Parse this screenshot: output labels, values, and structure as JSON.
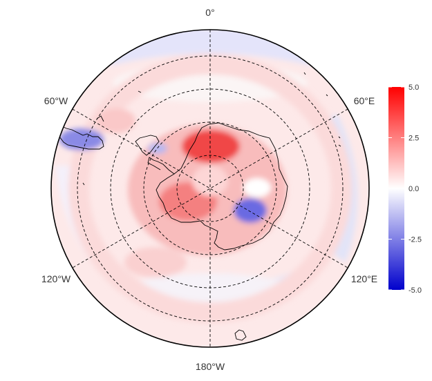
{
  "map": {
    "projection": "south-polar-stereographic",
    "grid_lines": "dashed",
    "longitude_labels": {
      "top": "0°",
      "upper_left": "60°W",
      "upper_right": "60°E",
      "lower_left": "120°W",
      "lower_right": "120°E",
      "bottom": "180°W"
    }
  },
  "colorbar": {
    "min": -5.0,
    "max": 5.0,
    "colors": {
      "low": "#0000cc",
      "mid": "#ffffff",
      "high": "#ff0000"
    },
    "ticks": [
      "5.0",
      "2.5",
      "0.0",
      "-2.5",
      "-5.0"
    ]
  }
}
